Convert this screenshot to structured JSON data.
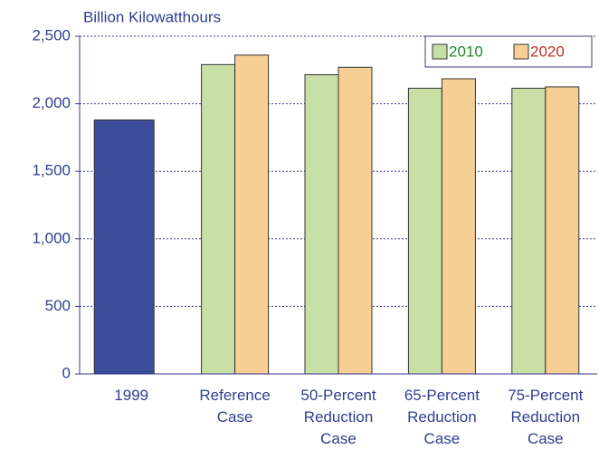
{
  "chart_data": {
    "type": "bar",
    "y_axis_label": "Billion Kilowatthours",
    "categories": [
      "1999",
      "Reference Case",
      "50-Percent Reduction Case",
      "65-Percent Reduction Case",
      "75-Percent Reduction Case"
    ],
    "series": [
      {
        "color": "#3b4c9b",
        "values": [
          1880,
          null,
          null,
          null,
          null
        ]
      },
      {
        "name": "2010",
        "color": "#c8e0a6",
        "label_color": "#1f8a2a",
        "values": [
          null,
          2290,
          2215,
          2115,
          2115
        ]
      },
      {
        "name": "2020",
        "color": "#f7cf95",
        "label_color": "#c0302a",
        "values": [
          null,
          2360,
          2270,
          2185,
          2125
        ]
      }
    ],
    "ylim": [
      0,
      2500
    ],
    "yticks": [
      0,
      500,
      {
        "value": 1000,
        "label": "1,000"
      },
      {
        "value": 1500,
        "label": "1,500"
      },
      {
        "value": 2000,
        "label": "2,000"
      },
      {
        "value": 2500,
        "label": "2,500"
      }
    ],
    "grid": true,
    "legend": "upper right"
  }
}
